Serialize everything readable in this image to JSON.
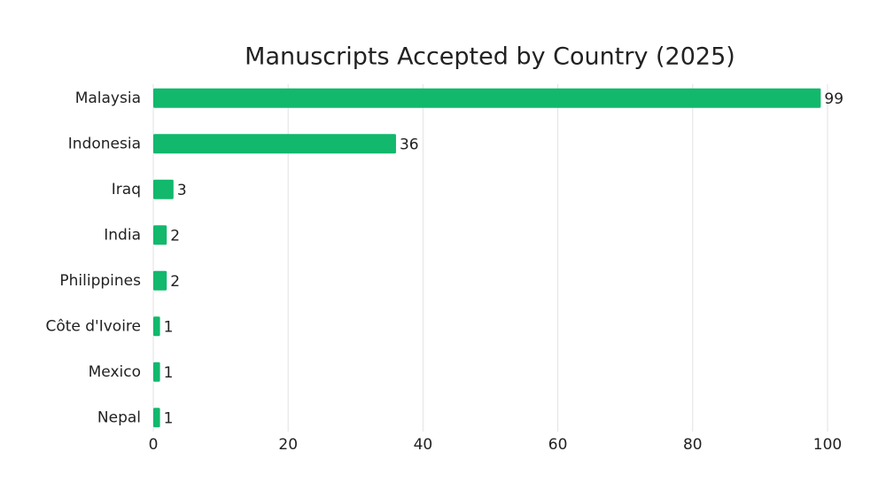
{
  "chart_data": {
    "type": "bar",
    "orientation": "horizontal",
    "title": "Manuscripts Accepted by Country (2025)",
    "categories": [
      "Malaysia",
      "Indonesia",
      "Iraq",
      "India",
      "Philippines",
      "Côte d'Ivoire",
      "Mexico",
      "Nepal"
    ],
    "values": [
      99,
      36,
      3,
      2,
      2,
      1,
      1,
      1
    ],
    "color": "#12b86c",
    "xlim": [
      0,
      100
    ],
    "xticks": [
      0,
      20,
      40,
      60,
      80,
      100
    ],
    "grid": true
  }
}
